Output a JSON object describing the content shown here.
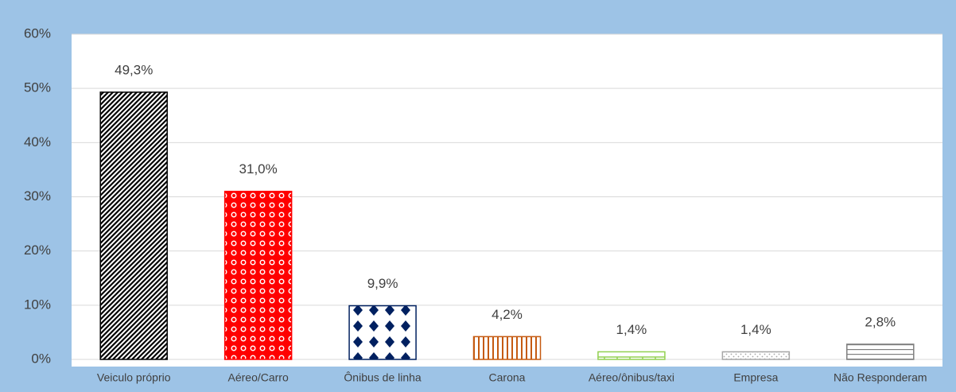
{
  "chart_data": {
    "type": "bar",
    "categories": [
      "Veiculo próprio",
      "Aéreo/Carro",
      "Ônibus de linha",
      "Carona",
      "Aéreo/ônibus/taxi",
      "Empresa",
      "Não Responderam"
    ],
    "values": [
      49.3,
      31.0,
      9.9,
      4.2,
      1.4,
      1.4,
      2.8
    ],
    "value_labels": [
      "49,3%",
      "31,0%",
      "9,9%",
      "4,2%",
      "1,4%",
      "1,4%",
      "2,8%"
    ],
    "colors": [
      "#000000",
      "#ff0000",
      "#002060",
      "#c55a11",
      "#92d050",
      "#a6a6a6",
      "#7f7f7f"
    ],
    "ylim": [
      0,
      60
    ],
    "yticks": [
      {
        "value": 0,
        "label": "0%"
      },
      {
        "value": 10,
        "label": "10%"
      },
      {
        "value": 20,
        "label": "20%"
      },
      {
        "value": 30,
        "label": "30%"
      },
      {
        "value": 40,
        "label": "40%"
      },
      {
        "value": 50,
        "label": "50%"
      },
      {
        "value": 60,
        "label": "60%"
      }
    ],
    "grid": true
  }
}
